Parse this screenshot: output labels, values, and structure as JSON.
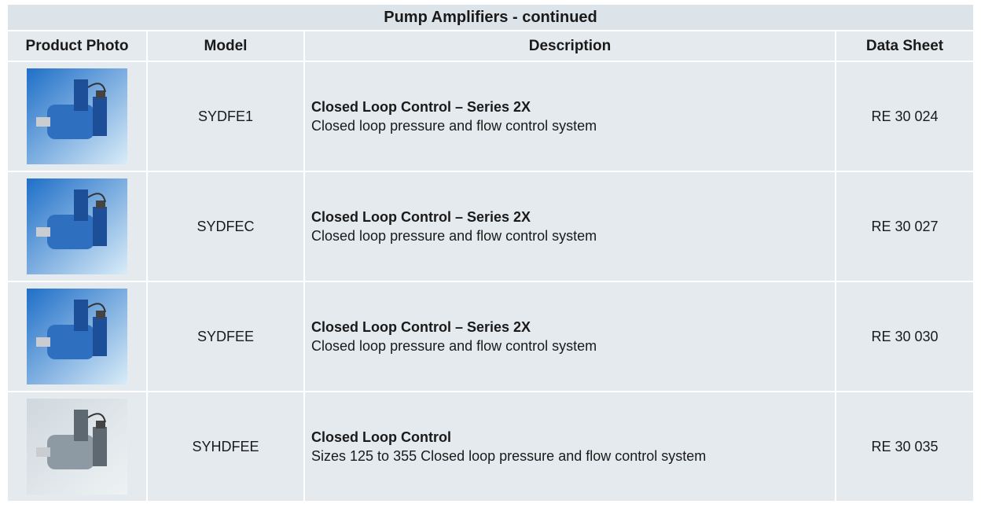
{
  "table": {
    "title": "Pump Amplifiers - continued",
    "columns": [
      "Product Photo",
      "Model",
      "Description",
      "Data Sheet"
    ],
    "rows": [
      {
        "model": "SYDFE1",
        "heading": "Closed Loop Control – Series 2X",
        "description": "Closed loop pressure and flow control system",
        "data_sheet": "RE 30 024"
      },
      {
        "model": "SYDFEC",
        "heading": "Closed Loop Control – Series 2X",
        "description": "Closed loop pressure and flow control system",
        "data_sheet": "RE 30 027"
      },
      {
        "model": "SYDFEE",
        "heading": "Closed Loop Control – Series 2X",
        "description": "Closed loop pressure and flow control system",
        "data_sheet": "RE 30 030"
      },
      {
        "model": "SYHDFEE",
        "heading": "Closed Loop Control",
        "description": "Sizes 125 to 355 Closed loop pressure and flow control system",
        "data_sheet": "RE 30 035"
      }
    ]
  }
}
